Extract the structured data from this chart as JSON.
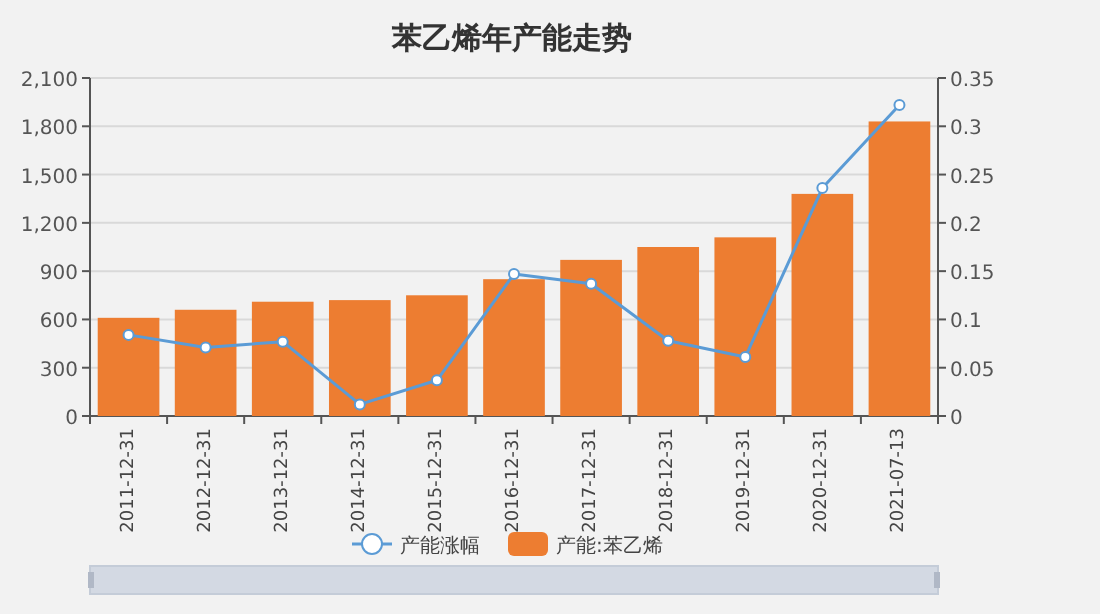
{
  "chart_data": {
    "type": "bar",
    "title": "苯乙烯年产能走势",
    "categories": [
      "2011-12-31",
      "2012-12-31",
      "2013-12-31",
      "2014-12-31",
      "2015-12-31",
      "2016-12-31",
      "2017-12-31",
      "2018-12-31",
      "2019-12-31",
      "2020-12-31",
      "2021-07-13"
    ],
    "series": [
      {
        "name": "产能涨幅",
        "type": "line",
        "axis": "y2",
        "color": "#5b9bd5",
        "marker": "circle",
        "values": [
          0.084,
          0.071,
          0.077,
          0.012,
          0.037,
          0.147,
          0.137,
          0.078,
          0.061,
          0.236,
          0.322
        ]
      },
      {
        "name": "产能:苯乙烯",
        "color": "#ed7d31",
        "values": [
          610,
          660,
          710,
          720,
          750,
          850,
          970,
          1050,
          1110,
          1380,
          1830
        ]
      }
    ],
    "ylim": [
      0,
      2100
    ],
    "yticks": [
      {
        "value": 0,
        "label": "0"
      },
      {
        "value": 300,
        "label": "300"
      },
      {
        "value": 600,
        "label": "600"
      },
      {
        "value": 900,
        "label": "900"
      },
      {
        "value": 1200,
        "label": "1,200"
      },
      {
        "value": 1500,
        "label": "1,500"
      },
      {
        "value": 1800,
        "label": "1,800"
      },
      {
        "value": 2100,
        "label": "2,100"
      }
    ],
    "y2lim": [
      0,
      0.35
    ],
    "y2ticks": [
      0,
      0.05,
      0.1,
      0.15,
      0.2,
      0.25,
      0.3,
      0.35
    ],
    "grid": "y",
    "legend": "bottom"
  }
}
